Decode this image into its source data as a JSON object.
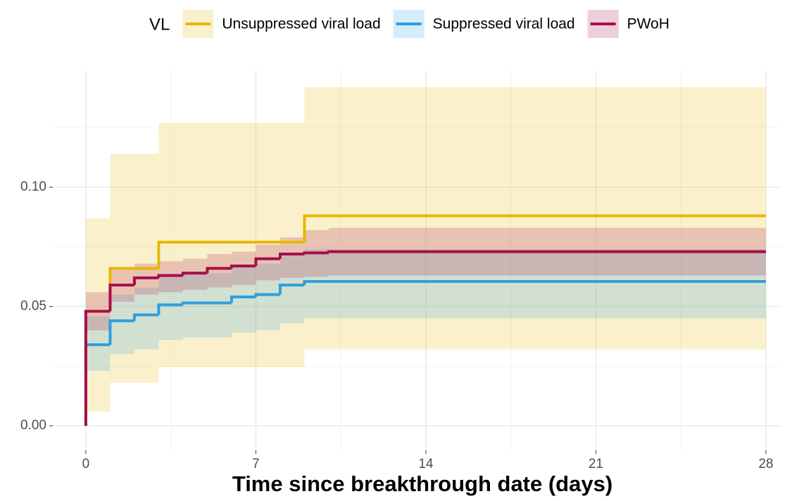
{
  "chart_data": {
    "type": "step",
    "legend_title": "VL",
    "x_label": "Time since breakthrough date (days)",
    "xlim": [
      -1.36,
      28.64
    ],
    "xticks": [
      0,
      7,
      14,
      21,
      28
    ],
    "ylim": [
      -0.0103,
      0.149
    ],
    "yticks": [
      {
        "value": 0,
        "label": "0.00"
      },
      {
        "value": 0.05,
        "label": "0.05"
      },
      {
        "value": 0.1,
        "label": "0.10"
      }
    ],
    "grid": true,
    "minor_grid": true,
    "legend_position": "top",
    "series": [
      {
        "name": "Unsuppressed viral load",
        "color": "#E7B800",
        "x": [
          0,
          0,
          1,
          3,
          9,
          28
        ],
        "values": [
          0,
          0.048,
          0.066,
          0.077,
          0.088,
          0.088
        ],
        "lower": [
          null,
          0.006,
          0.018,
          0.0245,
          0.032,
          0.032
        ],
        "upper": [
          null,
          0.087,
          0.114,
          0.127,
          0.142,
          0.142
        ]
      },
      {
        "name": "Suppressed viral load",
        "color": "#2E9FDF",
        "x": [
          0,
          0,
          1,
          2,
          3,
          4,
          6,
          7,
          8,
          9,
          28
        ],
        "values": [
          0,
          0.034,
          0.044,
          0.0465,
          0.0507,
          0.0515,
          0.054,
          0.055,
          0.059,
          0.0605,
          0.0605
        ],
        "lower": [
          null,
          0.023,
          0.03,
          0.032,
          0.036,
          0.037,
          0.039,
          0.04,
          0.043,
          0.045,
          0.045
        ],
        "upper": [
          null,
          0.046,
          0.055,
          0.058,
          0.063,
          0.064,
          0.067,
          0.068,
          0.072,
          0.074,
          0.076
        ]
      },
      {
        "name": "PWoH",
        "color": "#A50F4B",
        "x": [
          0,
          0,
          1,
          2,
          3,
          4,
          5,
          6,
          7,
          8,
          9,
          10,
          28
        ],
        "values": [
          0,
          0.048,
          0.059,
          0.062,
          0.063,
          0.064,
          0.066,
          0.067,
          0.07,
          0.072,
          0.0725,
          0.073,
          0.073
        ],
        "lower": [
          null,
          0.04,
          0.052,
          0.055,
          0.056,
          0.057,
          0.058,
          0.059,
          0.061,
          0.062,
          0.0625,
          0.063,
          0.063
        ],
        "upper": [
          null,
          0.056,
          0.066,
          0.068,
          0.069,
          0.07,
          0.072,
          0.073,
          0.076,
          0.079,
          0.082,
          0.083,
          0.084
        ]
      }
    ]
  }
}
